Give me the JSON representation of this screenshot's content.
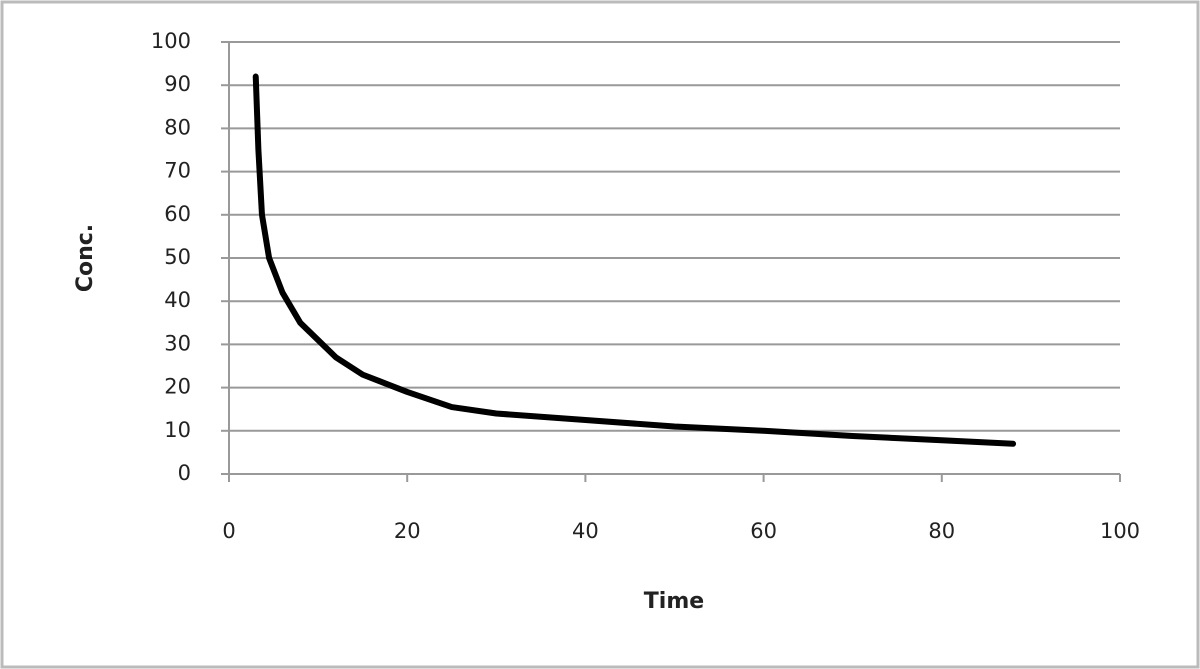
{
  "chart_data": {
    "type": "line",
    "x_label": "Time",
    "y_label": "Conc.",
    "x": [
      3,
      3.3,
      3.7,
      4.5,
      6,
      8,
      10,
      12,
      15,
      20,
      25,
      30,
      40,
      50,
      60,
      70,
      80,
      88
    ],
    "values": [
      92,
      75,
      60,
      50,
      42,
      35,
      31,
      27,
      23,
      19,
      15.5,
      14,
      12.5,
      11,
      10,
      8.8,
      7.8,
      7
    ],
    "color": "#000000",
    "xlim": [
      0,
      100
    ],
    "xticks": [
      0,
      20,
      40,
      60,
      80,
      100
    ],
    "ylim": [
      0,
      100
    ],
    "yticks": [
      0,
      10,
      20,
      30,
      40,
      50,
      60,
      70,
      80,
      90,
      100
    ],
    "grid": true
  }
}
